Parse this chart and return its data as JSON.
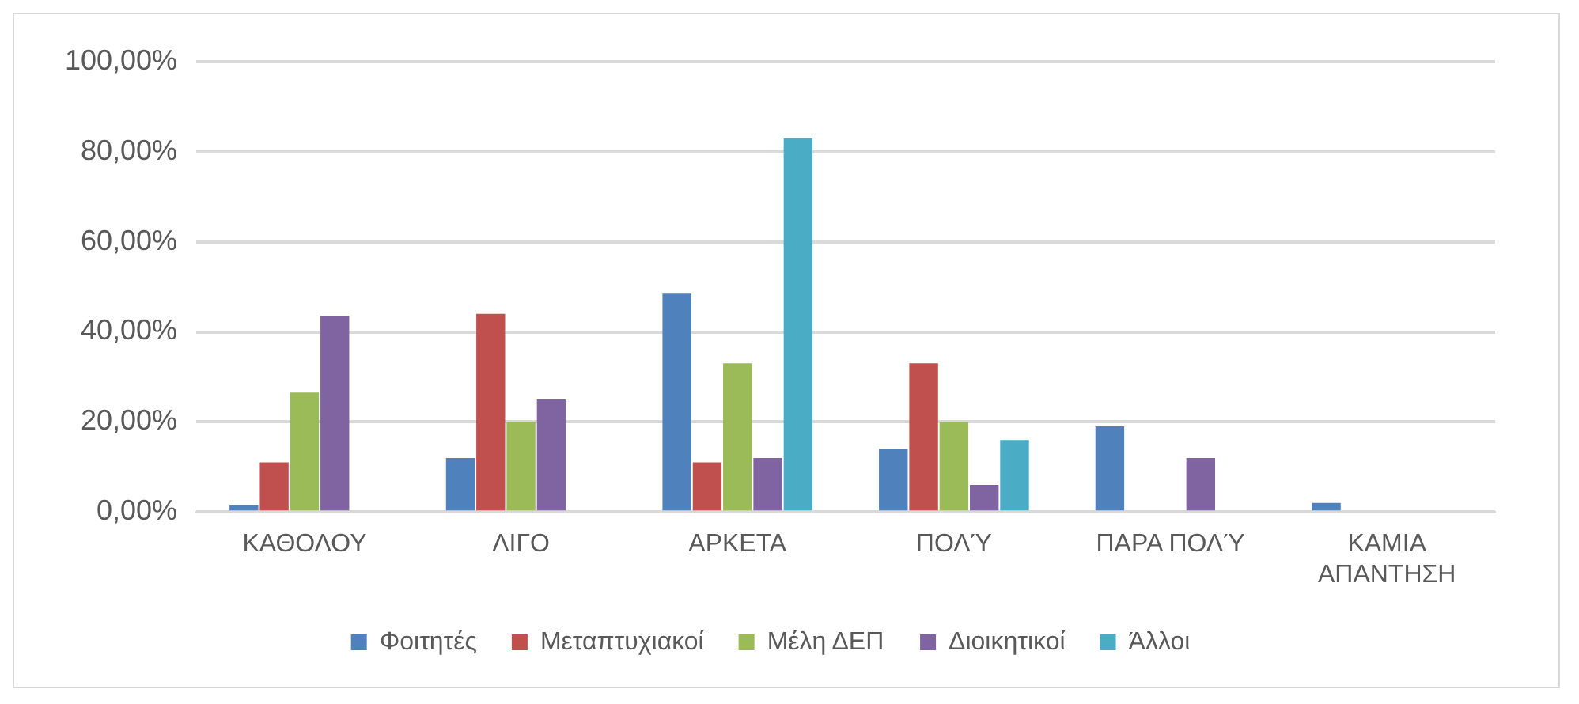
{
  "chart_data": {
    "type": "bar",
    "categories": [
      "ΚΑΘΟΛΟΥ",
      "ΛΙΓΟ",
      "ΑΡΚΕΤΑ",
      "ΠΟΛΎ",
      "ΠΑΡΑ ΠΟΛΎ",
      "ΚΑΜΙΑ ΑΠΑΝΤΗΣΗ"
    ],
    "series": [
      {
        "name": "Φοιτητές",
        "color": "#4f81bd",
        "values": [
          1.5,
          12,
          48.5,
          14,
          19,
          2
        ]
      },
      {
        "name": "Μεταπτυχιακοί",
        "color": "#c0504d",
        "values": [
          11,
          44,
          11,
          33,
          0,
          0
        ]
      },
      {
        "name": "Μέλη ΔΕΠ",
        "color": "#9bbb59",
        "values": [
          26.5,
          20,
          33,
          20,
          0,
          0
        ]
      },
      {
        "name": "Διοικητικοί",
        "color": "#8064a2",
        "values": [
          43.5,
          25,
          12,
          6,
          12,
          0
        ]
      },
      {
        "name": "Άλλοι",
        "color": "#4bacc6",
        "values": [
          0,
          0,
          83,
          16,
          0,
          0
        ]
      }
    ],
    "ylim": [
      0,
      100
    ],
    "yticks": [
      {
        "value": 0,
        "label": "0,00%"
      },
      {
        "value": 20,
        "label": "20,00%"
      },
      {
        "value": 40,
        "label": "40,00%"
      },
      {
        "value": 60,
        "label": "60,00%"
      },
      {
        "value": 80,
        "label": "80,00%"
      },
      {
        "value": 100,
        "label": "100,00%"
      }
    ],
    "grid": "y",
    "legend": "bottom"
  }
}
